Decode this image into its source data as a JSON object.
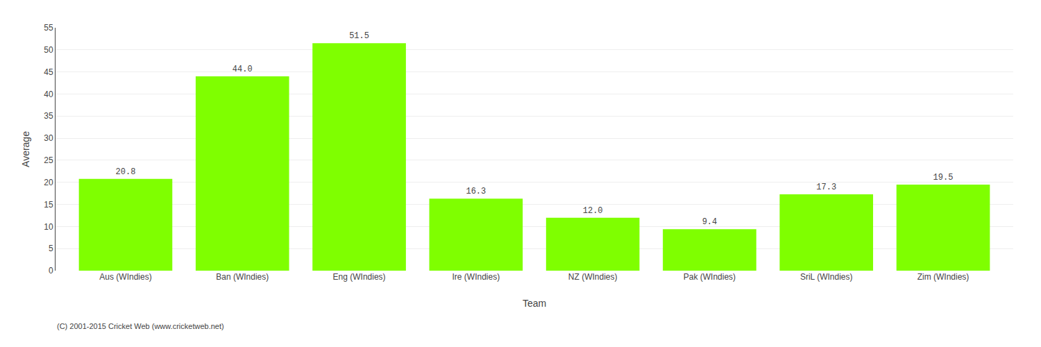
{
  "chart_data": {
    "type": "bar",
    "xlabel": "Team",
    "ylabel": "Average",
    "categories": [
      "Aus (WIndies)",
      "Ban (WIndies)",
      "Eng (WIndies)",
      "Ire (WIndies)",
      "NZ (WIndies)",
      "Pak (WIndies)",
      "SriL (WIndies)",
      "Zim (WIndies)"
    ],
    "values": [
      20.8,
      44.0,
      51.5,
      16.3,
      12.0,
      9.4,
      17.3,
      19.5
    ],
    "value_labels": [
      "20.8",
      "44.0",
      "51.5",
      "16.3",
      "12.0",
      "9.4",
      "17.3",
      "19.5"
    ],
    "data_labels": true,
    "color": "#7fff00",
    "ylim": [
      0,
      55
    ],
    "yticks": [
      0,
      5,
      10,
      15,
      20,
      25,
      30,
      35,
      40,
      45,
      50,
      55
    ],
    "grid": true,
    "annotations": [
      "(C) 2001-2015 Cricket Web (www.cricketweb.net)"
    ]
  }
}
